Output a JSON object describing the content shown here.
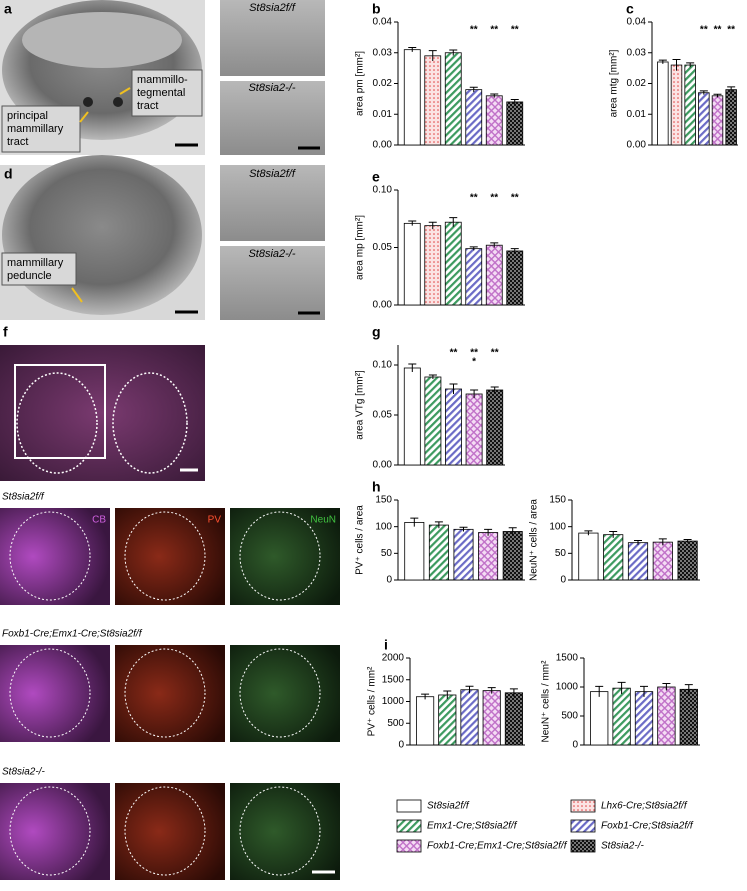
{
  "images": {
    "a": {
      "label": "a",
      "top": "St8sia2f/f",
      "bottom": "St8sia2-/-",
      "callouts": [
        {
          "lines": [
            "mammillo-",
            "tegmental",
            "tract"
          ]
        },
        {
          "lines": [
            "principal",
            "mammillary",
            "tract"
          ]
        }
      ]
    },
    "d": {
      "label": "d",
      "top": "St8sia2f/f",
      "bottom": "St8sia2-/-",
      "callouts": [
        {
          "lines": [
            "mammillary",
            "peduncle"
          ]
        }
      ]
    },
    "f": {
      "label": "f",
      "channels": [
        "CB",
        "PV",
        "NeuN"
      ],
      "rows": [
        "St8sia2f/f",
        "Foxb1-Cre;Emx1-Cre;St8sia2f/f",
        "St8sia2-/-"
      ]
    }
  },
  "legend": [
    {
      "name": "St8sia2f/f",
      "color": "#ffffff"
    },
    {
      "name": "Lhx6-Cre;St8sia2f/f",
      "color": "#f7c9c9"
    },
    {
      "name": "Emx1-Cre;St8sia2f/f",
      "color": "#3c9a5f"
    },
    {
      "name": "Foxb1-Cre;St8sia2f/f",
      "color": "#6b6bc6"
    },
    {
      "name": "Foxb1-Cre;Emx1-Cre;St8sia2f/f",
      "color": "#c070c8"
    },
    {
      "name": "St8sia2-/-",
      "color": "#111111"
    }
  ],
  "chart_data": [
    {
      "type": "bar",
      "label": "b",
      "ylabel": "area pm [mm²]",
      "values": [
        0.031,
        0.029,
        0.03,
        0.018,
        0.016,
        0.014
      ],
      "errors": [
        0.0007,
        0.0017,
        0.0009,
        0.0008,
        0.0006,
        0.0008
      ],
      "significance": [
        [],
        [],
        [],
        [
          "**"
        ],
        [
          "**"
        ],
        [
          "**"
        ]
      ],
      "ylim": [
        0,
        0.04
      ],
      "yticks": [
        {
          "value": 0,
          "label": "0.00"
        },
        0.01,
        0.02,
        0.03,
        0.04
      ]
    },
    {
      "type": "bar",
      "label": "c",
      "ylabel": "area mtg [mm²]",
      "values": [
        0.027,
        0.026,
        0.026,
        0.017,
        0.016,
        0.018
      ],
      "errors": [
        0.0006,
        0.0018,
        0.0007,
        0.0006,
        0.0005,
        0.0009
      ],
      "significance": [
        [],
        [],
        [],
        [
          "**"
        ],
        [
          "**"
        ],
        [
          "**"
        ]
      ],
      "ylim": [
        0,
        0.04
      ],
      "yticks": [
        {
          "value": 0,
          "label": "0.00"
        },
        0.01,
        0.02,
        0.03,
        0.04
      ]
    },
    {
      "type": "bar",
      "label": "e",
      "ylabel": "area mp [mm²]",
      "values": [
        0.071,
        0.069,
        0.072,
        0.049,
        0.052,
        0.047
      ],
      "errors": [
        0.002,
        0.003,
        0.004,
        0.0015,
        0.002,
        0.002
      ],
      "significance": [
        [],
        [],
        [],
        [
          "**"
        ],
        [
          "**"
        ],
        [
          "**"
        ]
      ],
      "ylim": [
        0,
        0.1
      ],
      "yticks": [
        {
          "value": 0,
          "label": "0.00"
        },
        0.05,
        {
          "value": 0.1,
          "label": "0.10"
        }
      ]
    },
    {
      "type": "bar",
      "label": "g",
      "ylabel": "area VTg [mm²]",
      "values": [
        0.097,
        null,
        0.088,
        0.076,
        0.071,
        0.075
      ],
      "errors": [
        0.004,
        null,
        0.002,
        0.005,
        0.004,
        0.003
      ],
      "significance": [
        [],
        [],
        [],
        [
          "**"
        ],
        [
          "**",
          "*"
        ],
        [
          "**"
        ]
      ],
      "ylim": [
        0,
        0.12
      ],
      "yticks": [
        {
          "value": 0,
          "label": "0.00"
        },
        0.05,
        {
          "value": 0.1,
          "label": "0.10"
        }
      ]
    },
    {
      "type": "bar",
      "label": "h",
      "ylabel": "PV⁺ cells / area",
      "values": [
        108,
        null,
        103,
        95,
        89,
        91
      ],
      "errors": [
        8,
        null,
        6,
        4,
        6,
        7
      ],
      "ylim": [
        0,
        150
      ],
      "yticks": [
        0,
        50,
        100,
        150
      ]
    },
    {
      "type": "bar",
      "ylabel": "NeuN⁺ cells / area",
      "values": [
        88,
        null,
        85,
        70,
        71,
        73
      ],
      "errors": [
        4,
        null,
        6,
        4,
        6,
        3
      ],
      "ylim": [
        0,
        150
      ],
      "yticks": [
        0,
        50,
        100,
        150
      ]
    },
    {
      "type": "bar",
      "label": "i",
      "ylabel": "PV⁺ cells / mm²",
      "values": [
        1110,
        null,
        1150,
        1270,
        1250,
        1200
      ],
      "errors": [
        60,
        null,
        90,
        80,
        70,
        90
      ],
      "ylim": [
        0,
        2000
      ],
      "yticks": [
        0,
        500,
        1000,
        1500,
        2000
      ]
    },
    {
      "type": "bar",
      "ylabel": "NeuN⁺ cells / mm²",
      "values": [
        920,
        null,
        980,
        920,
        1000,
        960
      ],
      "errors": [
        90,
        null,
        100,
        90,
        60,
        80
      ],
      "ylim": [
        0,
        1500
      ],
      "yticks": [
        0,
        500,
        1000,
        1500
      ]
    }
  ]
}
